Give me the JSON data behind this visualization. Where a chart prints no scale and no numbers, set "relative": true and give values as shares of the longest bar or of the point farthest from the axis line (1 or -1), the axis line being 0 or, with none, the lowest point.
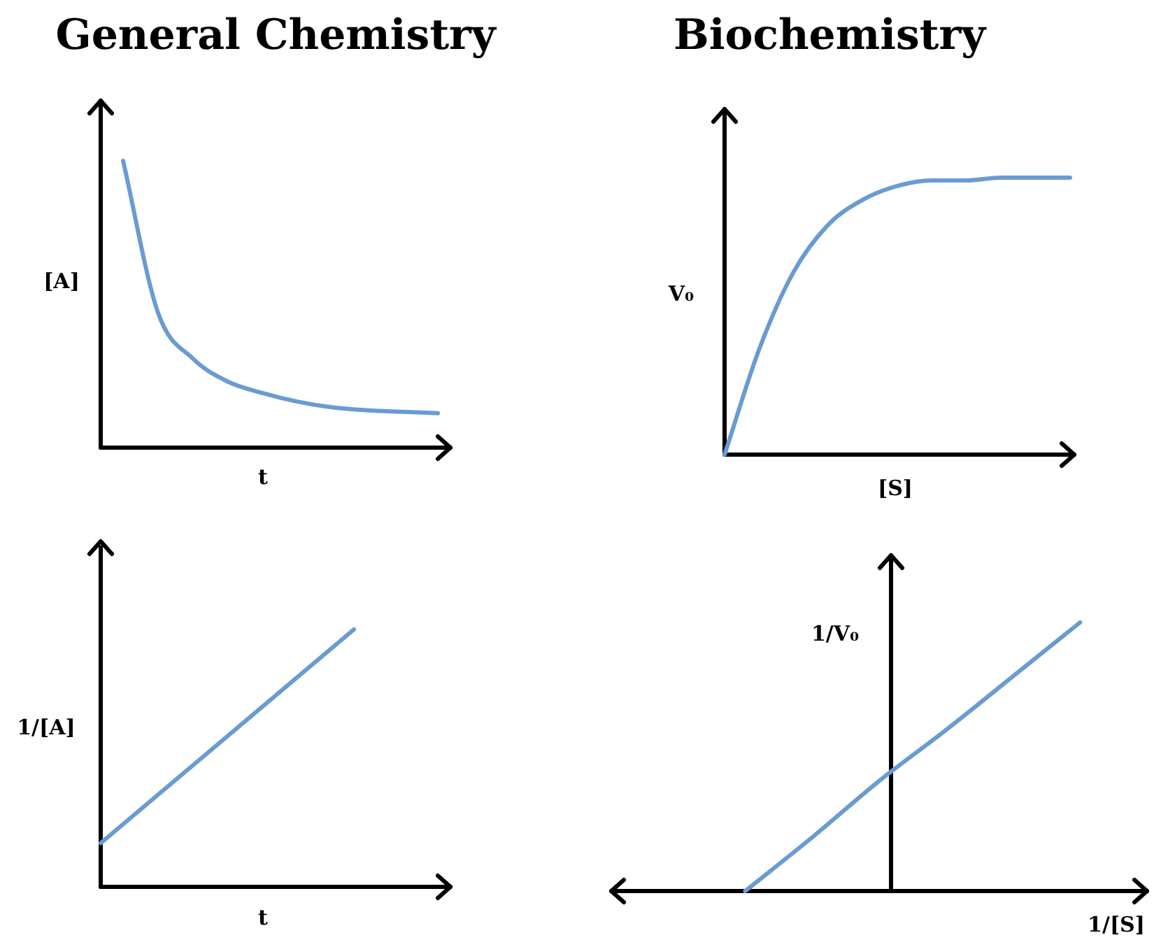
{
  "chart_data": [
    {
      "type": "line",
      "title": "General Chemistry",
      "xlabel": "t",
      "ylabel": "[A]",
      "relative": true,
      "color": "#6a9bd1",
      "categories": [
        null,
        null,
        null,
        null,
        null,
        null,
        null,
        null,
        null,
        null
      ],
      "values": [
        1.0,
        0.47,
        0.31,
        0.23,
        0.19,
        0.16,
        0.14,
        0.13,
        0.125,
        0.12
      ]
    },
    {
      "type": "line",
      "title": "Biochemistry",
      "xlabel": "[S]",
      "ylabel": "V₀",
      "relative": true,
      "color": "#6a9bd1",
      "categories": [
        null,
        null,
        null,
        null,
        null,
        null,
        null,
        null,
        null,
        null,
        null
      ],
      "values": [
        0,
        0.38,
        0.66,
        0.83,
        0.92,
        0.97,
        0.99,
        0.99,
        1.0,
        1.0,
        1.0
      ]
    },
    {
      "type": "line",
      "xlabel": "t",
      "ylabel": "1/[A]",
      "relative": true,
      "color": "#6a9bd1",
      "categories": [
        null,
        null
      ],
      "values": [
        0.17,
        1.0
      ]
    },
    {
      "type": "line",
      "xlabel": "1/[S]",
      "ylabel": "1/V₀",
      "relative": true,
      "color": "#6a9bd1",
      "categories": [
        null,
        null,
        null,
        null,
        null,
        null,
        null,
        null,
        null
      ],
      "values": [
        null,
        null,
        0,
        0.2,
        0.41,
        0.6,
        0.8,
        1.0,
        null
      ]
    }
  ]
}
